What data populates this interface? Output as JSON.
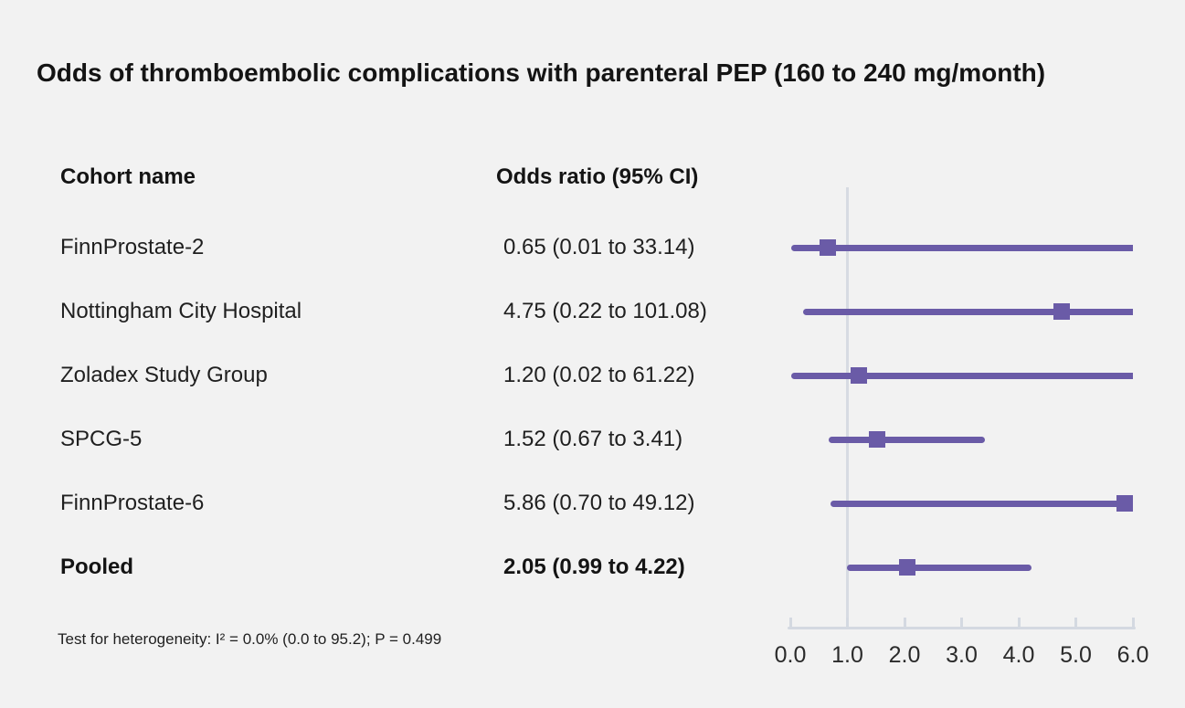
{
  "title": "Odds of thromboembolic complications with parenteral PEP (160 to 240 mg/month)",
  "table": {
    "cohort_header": "Cohort name",
    "or_header": "Odds ratio (95% CI)"
  },
  "footnote": "Test for heterogeneity: I² = 0.0% (0.0 to 95.2); P = 0.499",
  "chart_data": {
    "type": "forest",
    "title": "Odds of thromboembolic complications with parenteral PEP (160 to 240 mg/month)",
    "xlabel": "",
    "ylabel": "",
    "xlim": [
      0.0,
      6.0
    ],
    "reference_line": 1.0,
    "grid": false,
    "axis_ticks": [
      {
        "value": 0.0,
        "label": "0.0"
      },
      {
        "value": 1.0,
        "label": "1.0"
      },
      {
        "value": 2.0,
        "label": "2.0"
      },
      {
        "value": 3.0,
        "label": "3.0"
      },
      {
        "value": 4.0,
        "label": "4.0"
      },
      {
        "value": 5.0,
        "label": "5.0"
      },
      {
        "value": 6.0,
        "label": "6.0"
      }
    ],
    "studies": [
      {
        "name": "FinnProstate-2",
        "or": 0.65,
        "ci_lower": 0.01,
        "ci_upper": 33.14,
        "label": "0.65 (0.01 to 33.14)",
        "pooled": false
      },
      {
        "name": "Nottingham City Hospital",
        "or": 4.75,
        "ci_lower": 0.22,
        "ci_upper": 101.08,
        "label": "4.75 (0.22 to 101.08)",
        "pooled": false
      },
      {
        "name": "Zoladex Study Group",
        "or": 1.2,
        "ci_lower": 0.02,
        "ci_upper": 61.22,
        "label": "1.20 (0.02 to 61.22)",
        "pooled": false
      },
      {
        "name": "SPCG-5",
        "or": 1.52,
        "ci_lower": 0.67,
        "ci_upper": 3.41,
        "label": "1.52 (0.67 to 3.41)",
        "pooled": false
      },
      {
        "name": "FinnProstate-6",
        "or": 5.86,
        "ci_lower": 0.7,
        "ci_upper": 49.12,
        "label": "5.86 (0.70 to 49.12)",
        "pooled": false
      },
      {
        "name": "Pooled",
        "or": 2.05,
        "ci_lower": 0.99,
        "ci_upper": 4.22,
        "label": "2.05 (0.99 to 4.22)",
        "pooled": true
      }
    ],
    "colors": {
      "marker": "#6a5ba7",
      "ci_line": "#6a5ba7",
      "axis": "#d4d9e1",
      "reference_line": "#d7dbe2",
      "background": "#f2f2f2",
      "text": "#1f1f1f"
    }
  }
}
